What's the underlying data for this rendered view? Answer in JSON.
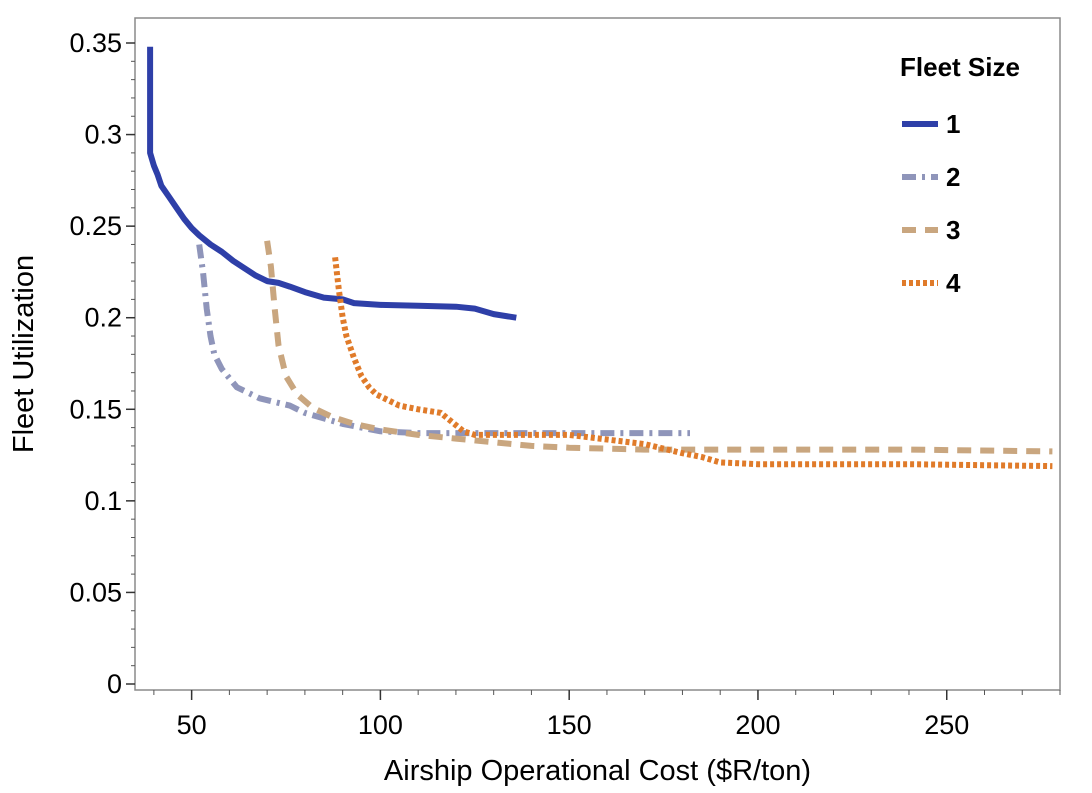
{
  "chart_data": {
    "type": "line",
    "xlabel": "Airship Operational Cost ($R/ton)",
    "ylabel": "Fleet Utilization",
    "xlim": [
      35,
      280
    ],
    "ylim": [
      0,
      0.35
    ],
    "x_ticks": [
      50,
      100,
      150,
      200,
      250
    ],
    "x_tick_labels": [
      "50",
      "100",
      "150",
      "200",
      "250"
    ],
    "y_ticks": [
      0,
      0.05,
      0.1,
      0.15,
      0.2,
      0.25,
      0.3,
      0.35
    ],
    "y_tick_labels": [
      "0",
      "0.05",
      "0.1",
      "0.15",
      "0.2",
      "0.25",
      "0.3",
      "0.35"
    ],
    "grid": false,
    "legend": {
      "title": "Fleet Size",
      "position": "top-right"
    },
    "series": [
      {
        "name": "1",
        "color": "#2e3fa8",
        "dash": "solid",
        "x": [
          39,
          39,
          39,
          40,
          41,
          42,
          44,
          46,
          48,
          50,
          52,
          55,
          58,
          61,
          64,
          67,
          70,
          73,
          76,
          80,
          85,
          90,
          93,
          100,
          110,
          120,
          125,
          130,
          136
        ],
        "y": [
          0.348,
          0.33,
          0.29,
          0.283,
          0.278,
          0.272,
          0.266,
          0.26,
          0.254,
          0.249,
          0.245,
          0.24,
          0.236,
          0.231,
          0.227,
          0.223,
          0.22,
          0.219,
          0.217,
          0.214,
          0.211,
          0.21,
          0.208,
          0.207,
          0.2065,
          0.206,
          0.205,
          0.202,
          0.2
        ]
      },
      {
        "name": "2",
        "color": "#8f95ba",
        "dash": "dashdot",
        "x": [
          52,
          53,
          54,
          55,
          56,
          58,
          60,
          62,
          65,
          68,
          72,
          76,
          80,
          85,
          90,
          95,
          100,
          110,
          120,
          140,
          160,
          182
        ],
        "y": [
          0.24,
          0.225,
          0.205,
          0.19,
          0.18,
          0.172,
          0.167,
          0.162,
          0.159,
          0.156,
          0.154,
          0.152,
          0.148,
          0.145,
          0.142,
          0.14,
          0.138,
          0.137,
          0.137,
          0.137,
          0.137,
          0.137
        ]
      },
      {
        "name": "3",
        "color": "#c9a67f",
        "dash": "dashed",
        "x": [
          70,
          71,
          72,
          73,
          75,
          78,
          82,
          87,
          93,
          100,
          110,
          120,
          130,
          140,
          150,
          170,
          200,
          240,
          278
        ],
        "y": [
          0.242,
          0.228,
          0.205,
          0.185,
          0.168,
          0.158,
          0.151,
          0.146,
          0.142,
          0.139,
          0.136,
          0.134,
          0.132,
          0.13,
          0.129,
          0.128,
          0.128,
          0.128,
          0.127
        ]
      },
      {
        "name": "4",
        "color": "#e07b2a",
        "dash": "dotted",
        "x": [
          88,
          89,
          90,
          91,
          93,
          95,
          97,
          99,
          102,
          105,
          110,
          116,
          119,
          122,
          125,
          135,
          150,
          170,
          180,
          185,
          190,
          200,
          240,
          278
        ],
        "y": [
          0.233,
          0.215,
          0.2,
          0.19,
          0.178,
          0.168,
          0.162,
          0.158,
          0.155,
          0.152,
          0.15,
          0.148,
          0.143,
          0.138,
          0.136,
          0.136,
          0.136,
          0.131,
          0.126,
          0.124,
          0.121,
          0.12,
          0.12,
          0.119
        ]
      }
    ]
  }
}
